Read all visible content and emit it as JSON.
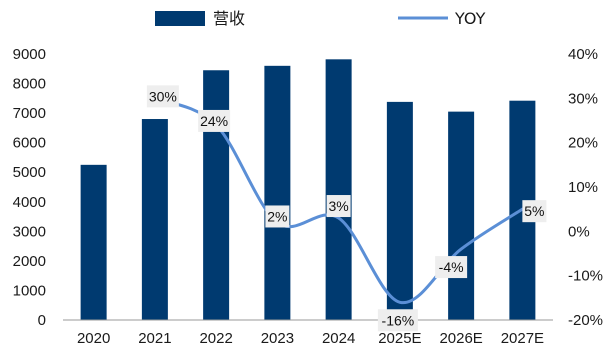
{
  "chart_data": {
    "type": "bar+line",
    "categories": [
      "2020",
      "2021",
      "2022",
      "2023",
      "2024",
      "2025E",
      "2026E",
      "2027E"
    ],
    "series": [
      {
        "name": "营收",
        "type": "bar",
        "axis": "left",
        "color": "#003a70",
        "values": [
          5250,
          6800,
          8450,
          8600,
          8820,
          7380,
          7050,
          7420
        ]
      },
      {
        "name": "YOY",
        "type": "line",
        "axis": "right",
        "color": "#5b8fd6",
        "values": [
          null,
          30,
          24,
          2,
          3,
          -16,
          -4,
          5
        ],
        "labels": [
          "",
          "30%",
          "24%",
          "2%",
          "3%",
          "-16%",
          "-4%",
          "5%"
        ]
      }
    ],
    "y_left": {
      "ylim": [
        0,
        9000
      ],
      "ticks": [
        "0",
        "1000",
        "2000",
        "3000",
        "4000",
        "5000",
        "6000",
        "7000",
        "8000",
        "9000"
      ]
    },
    "y_right": {
      "ylim": [
        -20,
        40
      ],
      "ticks": [
        "-20%",
        "-10%",
        "0%",
        "10%",
        "20%",
        "30%",
        "40%"
      ]
    },
    "legend": {
      "position": "top",
      "items": [
        "营收",
        "YOY"
      ]
    },
    "grid": false
  }
}
